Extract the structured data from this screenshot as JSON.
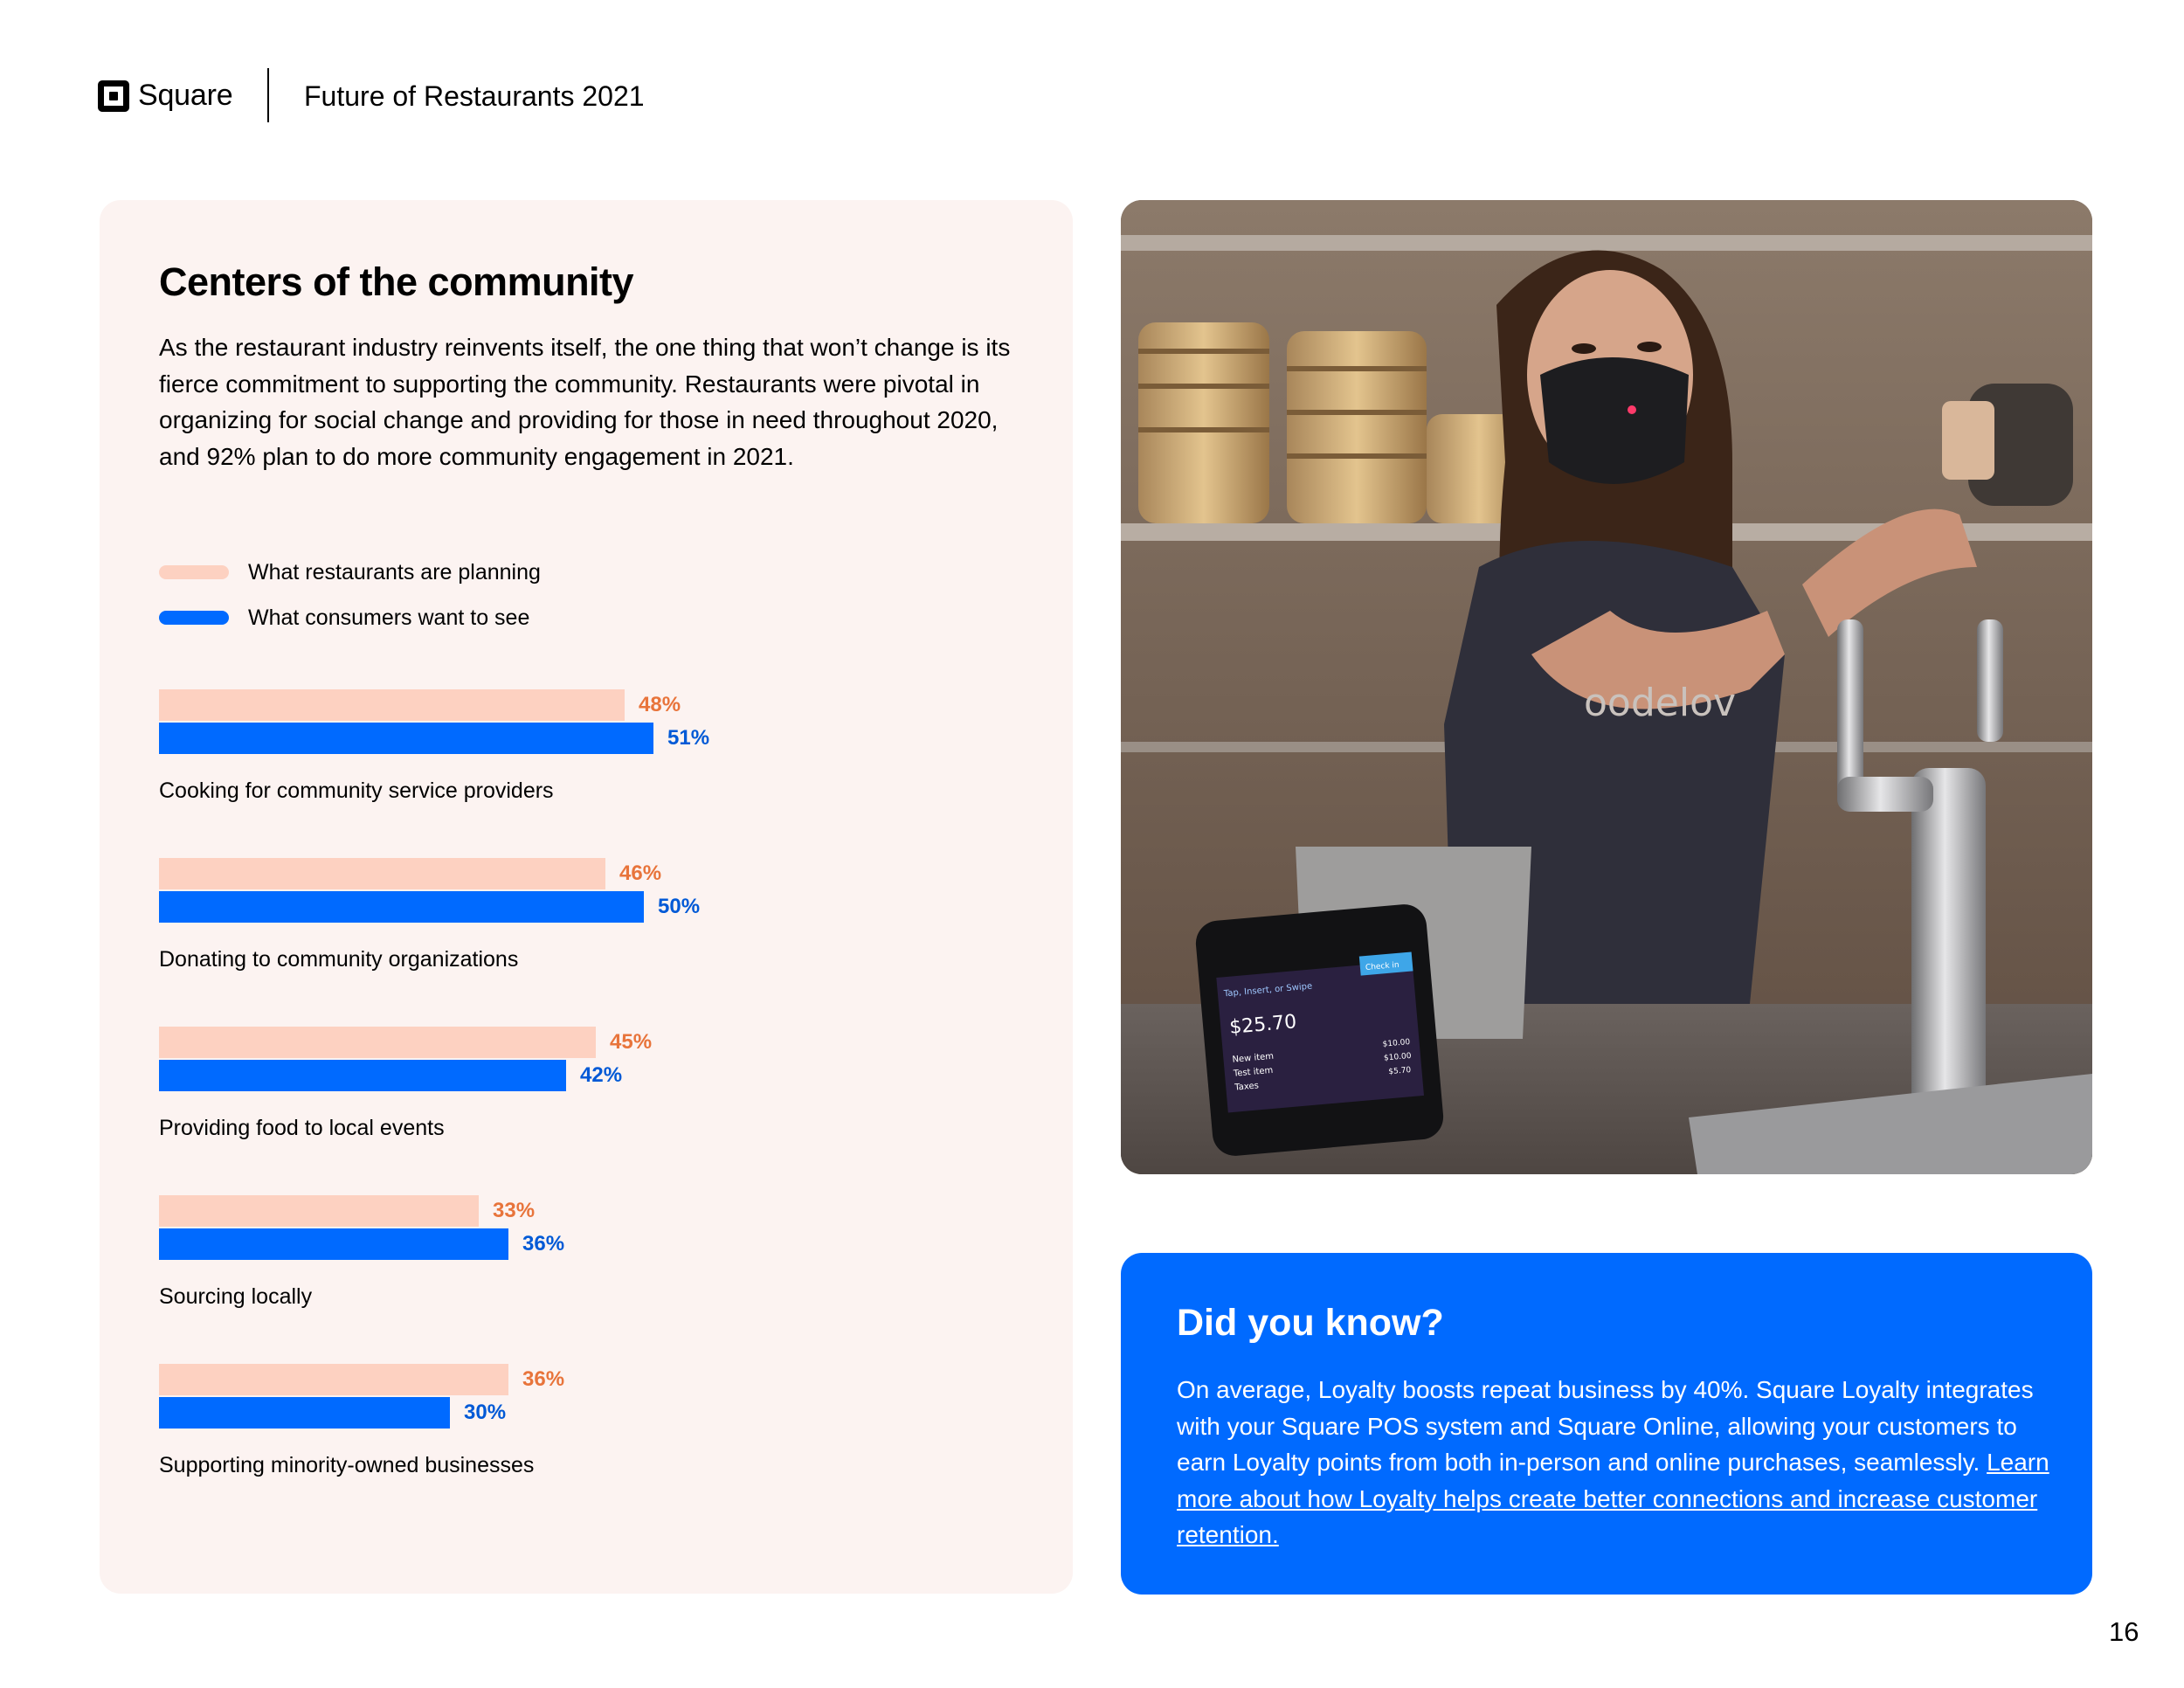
{
  "header": {
    "brand": "Square",
    "report_title": "Future of Restaurants 2021"
  },
  "section": {
    "title": "Centers of the community",
    "body": "As the restaurant industry reinvents itself, the one thing that won’t change is its fierce commitment to supporting the community. Restaurants were pivotal in organizing for social change and providing for those in need throughout 2020, and 92% plan to do more community engagement in 2021."
  },
  "legend": [
    {
      "label": "What restaurants are planning",
      "color": "#fdd1c1"
    },
    {
      "label": "What consumers want to see",
      "color": "#006aff"
    }
  ],
  "chart_data": {
    "type": "bar",
    "orientation": "horizontal",
    "categories": [
      "Cooking for community service providers",
      "Donating to community organizations",
      "Providing food to local events",
      "Sourcing locally",
      "Supporting minority-owned businesses"
    ],
    "series": [
      {
        "name": "What restaurants are planning",
        "values": [
          48,
          46,
          45,
          33,
          36
        ],
        "labels": [
          "48%",
          "46%",
          "45%",
          "33%",
          "36%"
        ],
        "color": "#fdd1c1",
        "label_color": "#e8743b"
      },
      {
        "name": "What consumers want to see",
        "values": [
          51,
          50,
          42,
          36,
          30
        ],
        "labels": [
          "51%",
          "50%",
          "42%",
          "36%",
          "30%"
        ],
        "color": "#006aff",
        "label_color": "#0059d6"
      }
    ],
    "unit": "%"
  },
  "photo": {
    "alt": "Bartender wearing a face mask pulling a beer tap behind a counter with a Square Terminal",
    "terminal": {
      "header": "Tap, Insert, or Swipe",
      "button": "Check in",
      "amount": "$25.70",
      "items": [
        {
          "name": "New item",
          "price": "$10.00"
        },
        {
          "name": "Test item",
          "price": "$10.00"
        },
        {
          "name": "Taxes",
          "price": "$5.70"
        }
      ]
    },
    "shirt_text": "oodelov"
  },
  "did_you_know": {
    "title": "Did you know?",
    "body": "On average, Loyalty boosts repeat business by 40%. Square Loyalty integrates with your Square POS system and Square Online, allowing your customers to earn Loyalty points from both in-person and online purchases, seamlessly. ",
    "link_text": "Learn more about how Loyalty helps create better connections and increase customer retention."
  },
  "page_number": "16"
}
